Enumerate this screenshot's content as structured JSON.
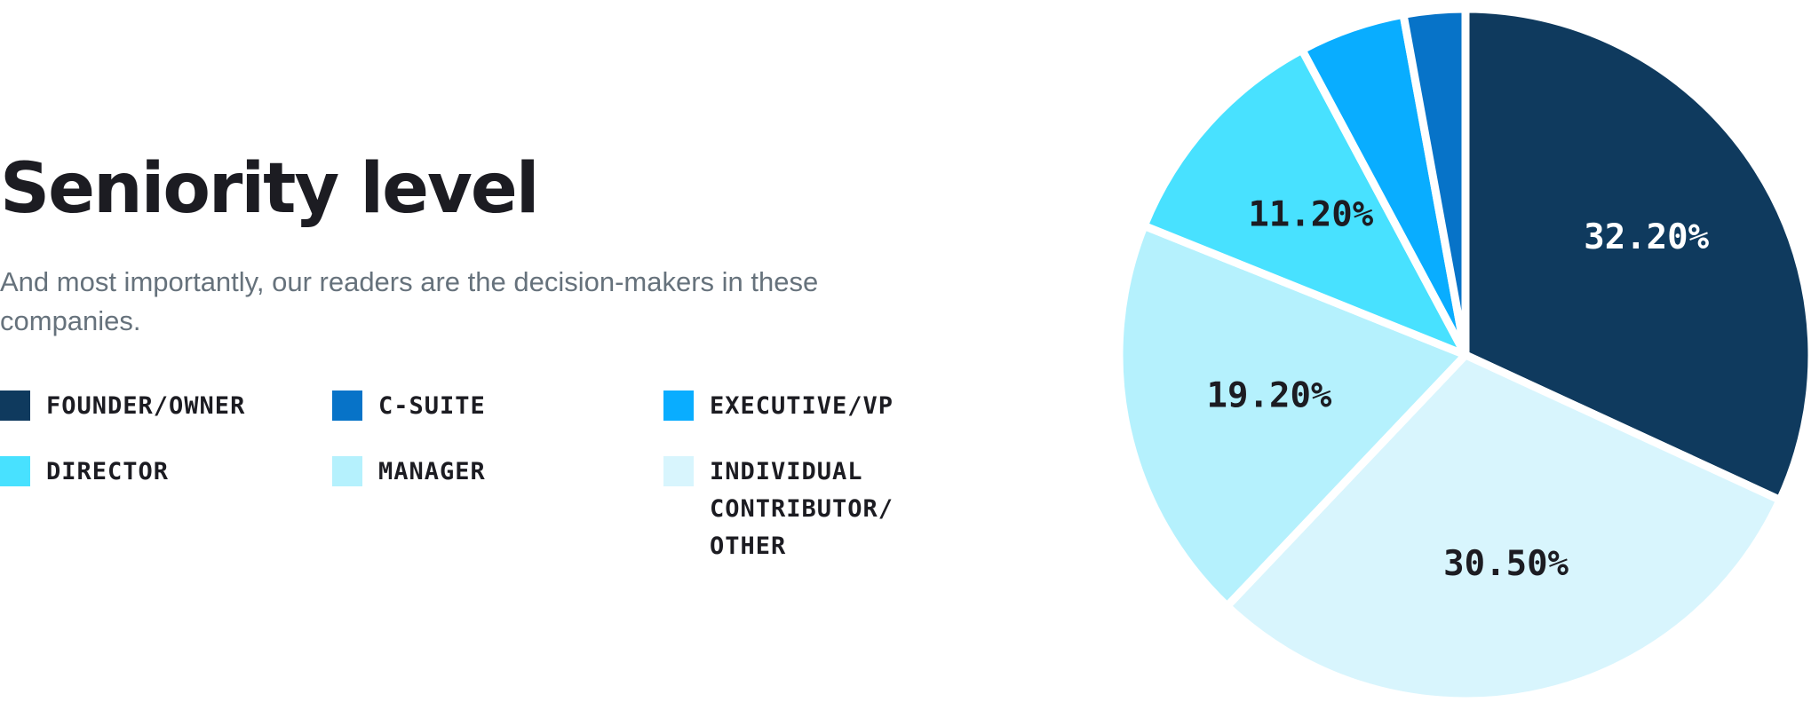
{
  "header": {
    "title": "Seniority level",
    "subtitle": "And most importantly, our readers are the decision-makers in these companies."
  },
  "legend": {
    "items": [
      {
        "label": "FOUNDER/OWNER",
        "color": "#0f3a5e"
      },
      {
        "label": "C-SUITE",
        "color": "#0773c8"
      },
      {
        "label": "EXECUTIVE/VP",
        "color": "#09adff"
      },
      {
        "label": "DIRECTOR",
        "color": "#48e1ff"
      },
      {
        "label": "MANAGER",
        "color": "#b5f1fd"
      },
      {
        "label": "INDIVIDUAL CONTRIBUTOR/ OTHER",
        "color": "#d8f5fd"
      }
    ]
  },
  "chart_data": {
    "type": "pie",
    "title": "Seniority level",
    "legend_position": "left",
    "categories": [
      "FOUNDER/OWNER",
      "INDIVIDUAL CONTRIBUTOR/ OTHER",
      "MANAGER",
      "DIRECTOR",
      "EXECUTIVE/VP",
      "C-SUITE"
    ],
    "values": [
      32.2,
      30.5,
      19.2,
      11.2,
      5.0,
      2.9
    ],
    "labels": [
      "32.20%",
      "30.50%",
      "19.20%",
      "11.20%",
      "",
      ""
    ],
    "colors": [
      "#0f3a5e",
      "#d8f5fd",
      "#b5f1fd",
      "#48e1ff",
      "#09adff",
      "#0773c8"
    ],
    "label_colors": [
      "#ffffff",
      "#1c1c22",
      "#1c1c22",
      "#1c1c22",
      "#1c1c22",
      "#1c1c22"
    ]
  }
}
